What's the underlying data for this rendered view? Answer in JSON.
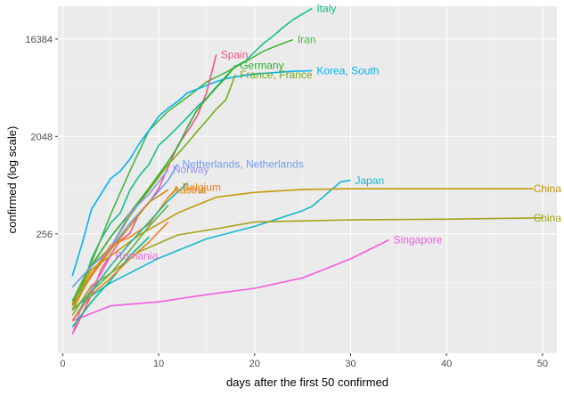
{
  "chart_data": {
    "type": "line",
    "title": "",
    "xlabel": "days after the first 50 confirmed",
    "ylabel": "confirmed  (log scale)",
    "y_scale": "log2",
    "xlim": [
      -0.5,
      51.5
    ],
    "ylim": [
      20,
      33000
    ],
    "grid": true,
    "legend": "none",
    "x_ticks": [
      0,
      10,
      20,
      30,
      40,
      50
    ],
    "y_ticks": [
      256,
      2048,
      16384
    ],
    "x_tick_labels": [
      "0",
      "10",
      "20",
      "30",
      "40",
      "50"
    ],
    "y_tick_labels": [
      "256",
      "2048",
      "16384"
    ],
    "series": [
      {
        "name": "Italy",
        "label": "Italy",
        "color": "#16bf8f",
        "x": [
          1,
          2,
          3,
          4,
          5,
          6,
          7,
          8,
          9,
          10,
          11,
          12,
          13,
          14,
          15,
          16,
          17,
          18,
          19,
          20,
          21,
          22,
          23,
          24,
          25,
          26
        ],
        "y": [
          62,
          79,
          150,
          229,
          322,
          400,
          650,
          888,
          1128,
          1694,
          2036,
          2502,
          3089,
          3858,
          4636,
          5883,
          7375,
          9172,
          10149,
          12462,
          15113,
          17660,
          21157,
          24747,
          27980,
          31506
        ]
      },
      {
        "name": "Iran",
        "label": "Iran",
        "color": "#48b43c",
        "x": [
          1,
          3,
          5,
          7,
          9,
          11,
          13,
          15,
          17,
          19,
          21,
          23,
          24
        ],
        "y": [
          61,
          139,
          388,
          978,
          2336,
          3513,
          4747,
          6566,
          8042,
          10075,
          12729,
          14991,
          16169
        ]
      },
      {
        "name": "Korea, South",
        "label": "Korea, South",
        "color": "#00b4ef",
        "x": [
          1,
          2,
          3,
          4,
          5,
          6,
          7,
          8,
          9,
          10,
          11,
          12,
          13,
          14,
          15,
          16,
          17,
          18,
          20,
          22,
          24,
          26
        ],
        "y": [
          104,
          204,
          433,
          602,
          833,
          977,
          1261,
          1766,
          2337,
          3150,
          3736,
          4335,
          5186,
          5621,
          6088,
          6593,
          7041,
          7313,
          7755,
          7979,
          8236,
          8320
        ]
      },
      {
        "name": "Spain",
        "label": "Spain",
        "color": "#f2548c",
        "x": [
          1,
          2,
          3,
          4,
          5,
          6,
          7,
          8,
          9,
          10,
          11,
          12,
          13,
          14,
          15,
          16
        ],
        "y": [
          30,
          45,
          70,
          120,
          165,
          222,
          259,
          400,
          500,
          673,
          1073,
          1695,
          2277,
          3146,
          5232,
          11748
        ]
      },
      {
        "name": "Germany",
        "label": "Germany",
        "color": "#2bb02b",
        "x": [
          1,
          3,
          5,
          7,
          9,
          11,
          12,
          13,
          14,
          15,
          16,
          17,
          18
        ],
        "y": [
          57,
          130,
          240,
          400,
          680,
          1200,
          1650,
          2500,
          3600,
          4600,
          5800,
          7200,
          9300
        ]
      },
      {
        "name": "France, France",
        "label": "France, France",
        "color": "#79ad17",
        "x": [
          1,
          3,
          5,
          7,
          9,
          11,
          12,
          13,
          14,
          15,
          16,
          17,
          18
        ],
        "y": [
          57,
          130,
          191,
          377,
          653,
          1126,
          1412,
          1784,
          2281,
          2876,
          3661,
          4469,
          7652
        ]
      },
      {
        "name": "Netherlands, Netherlands",
        "label": "Netherlands, Netherlands",
        "color": "#6f9cf5",
        "x": [
          1,
          3,
          5,
          7,
          9,
          11,
          12
        ],
        "y": [
          82,
          128,
          188,
          321,
          503,
          804,
          1135
        ]
      },
      {
        "name": "Norway",
        "label": "Norway",
        "color": "#9494f7",
        "x": [
          1,
          3,
          5,
          7,
          9,
          11
        ],
        "y": [
          55,
          105,
          192,
          400,
          598,
          1009
        ]
      },
      {
        "name": "Belgium",
        "label": "Belgium",
        "color": "#ec8115",
        "x": [
          1,
          3,
          5,
          7,
          9,
          11,
          12
        ],
        "y": [
          50,
          109,
          200,
          239,
          314,
          559,
          689
        ]
      },
      {
        "name": "Austria",
        "label": "Austria",
        "color": "#d5880a",
        "x": [
          1,
          3,
          5,
          7,
          9,
          11
        ],
        "y": [
          55,
          104,
          182,
          302,
          504,
          655
        ]
      },
      {
        "name": "Japan",
        "label": "Japan",
        "color": "#14b8d1",
        "x": [
          1,
          5,
          10,
          15,
          20,
          25,
          26,
          29,
          30
        ],
        "y": [
          52,
          90,
          152,
          230,
          300,
          420,
          460,
          780,
          800
        ]
      },
      {
        "name": "China",
        "label": "China",
        "color": "#c49a0a",
        "x": [
          1,
          3,
          5,
          8,
          12,
          16,
          20,
          25,
          30,
          40,
          49
        ],
        "y": [
          50,
          120,
          160,
          250,
          400,
          560,
          620,
          660,
          670,
          670,
          670
        ]
      },
      {
        "name": "China",
        "label": "China",
        "color": "#a5a319",
        "x": [
          1,
          3,
          5,
          8,
          12,
          16,
          20,
          30,
          40,
          50
        ],
        "y": [
          45,
          85,
          110,
          175,
          250,
          285,
          330,
          345,
          350,
          360
        ]
      },
      {
        "name": "Singapore",
        "label": "Singapore",
        "color": "#f35ce0",
        "x": [
          1,
          5,
          10,
          15,
          20,
          25,
          30,
          34
        ],
        "y": [
          40,
          55,
          60,
          70,
          80,
          100,
          150,
          225
        ]
      },
      {
        "name": "Romania",
        "label": "Romania",
        "color": "#ef68d8",
        "x": [
          1,
          2,
          3,
          4,
          5
        ],
        "y": [
          30,
          55,
          80,
          110,
          160
        ]
      },
      {
        "name": "",
        "label": "",
        "color": "#25b5a0",
        "x": [
          1,
          3,
          5,
          7,
          9,
          11,
          13
        ],
        "y": [
          40,
          75,
          130,
          210,
          330,
          520,
          760
        ]
      },
      {
        "name": "",
        "label": "",
        "color": "#5cb440",
        "x": [
          1,
          3,
          5,
          7,
          9,
          11
        ],
        "y": [
          50,
          75,
          110,
          180,
          300,
          470
        ]
      },
      {
        "name": "",
        "label": "",
        "color": "#00c08b",
        "x": [
          1,
          3,
          5,
          7,
          9
        ],
        "y": [
          35,
          60,
          95,
          160,
          240
        ]
      },
      {
        "name": "",
        "label": "",
        "color": "#ee7e2c",
        "x": [
          1,
          3,
          5,
          7,
          9,
          11
        ],
        "y": [
          40,
          70,
          100,
          150,
          215,
          330
        ]
      }
    ]
  }
}
